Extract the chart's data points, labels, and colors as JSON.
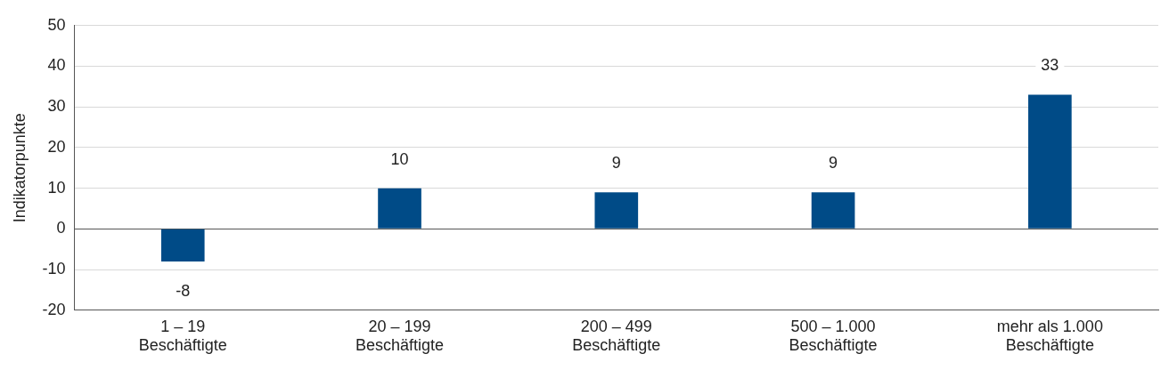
{
  "chart_data": {
    "type": "bar",
    "ylabel": "Indikatorpunkte",
    "categories": [
      "1 – 19\nBeschäftigte",
      "20 – 199\nBeschäftigte",
      "200 – 499\nBeschäftigte",
      "500 – 1.000\nBeschäftigte",
      "mehr als 1.000\nBeschäftigte"
    ],
    "values": [
      -8,
      10,
      9,
      9,
      33
    ],
    "color": "#004b87",
    "ylim": [
      -20,
      50
    ],
    "yticks": [
      -20,
      -10,
      0,
      10,
      20,
      30,
      40,
      50
    ],
    "grid": "y",
    "data_labels": true,
    "legend": false
  }
}
